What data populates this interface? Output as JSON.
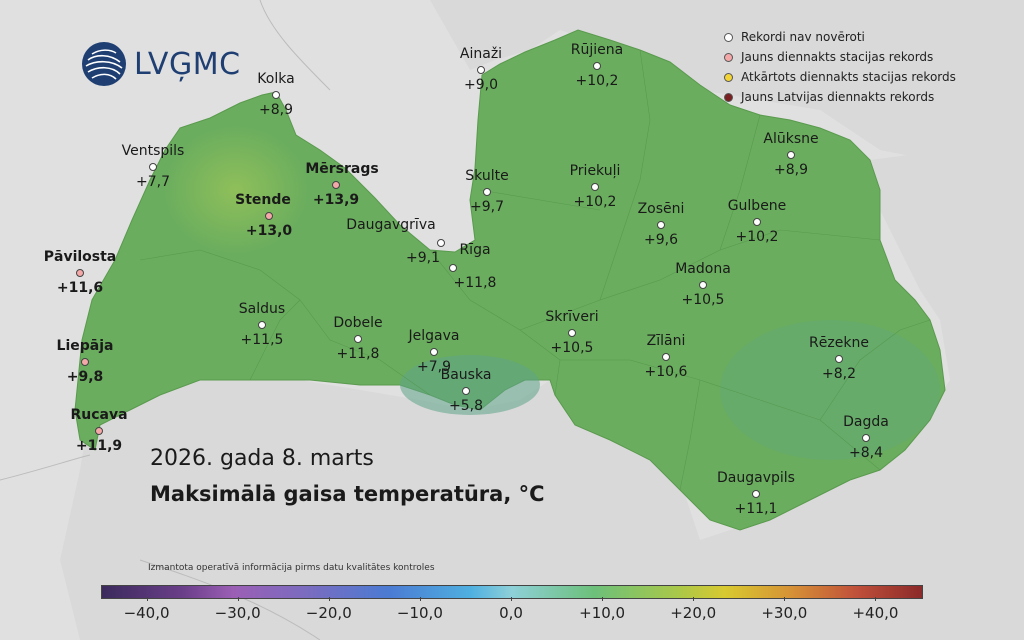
{
  "logo": {
    "text": "LVĢMC"
  },
  "legend": {
    "items": [
      {
        "label": "Rekordi nav novēroti",
        "color": "#ffffff"
      },
      {
        "label": "Jauns diennakts stacijas rekords",
        "color": "#f4a8a8"
      },
      {
        "label": "Atkārtots diennakts stacijas rekords",
        "color": "#f2d437"
      },
      {
        "label": "Jauns Latvijas diennakts rekords",
        "color": "#7a2020"
      }
    ]
  },
  "title": {
    "date": "2026. gada 8. marts",
    "main": "Maksimālā gaisa temperatūra, °C"
  },
  "note": "Izmantota operatīvā informācija pirms datu kvalitātes kontroles",
  "scale": {
    "min": -45,
    "max": 45,
    "ticks": [
      "−40,0",
      "−30,0",
      "−20,0",
      "−10,0",
      "0,0",
      "+10,0",
      "+20,0",
      "+30,0",
      "+40,0"
    ],
    "tick_values": [
      -40,
      -30,
      -20,
      -10,
      0,
      10,
      20,
      30,
      40
    ]
  },
  "stations": [
    {
      "name": "Ainaži",
      "value": "+9,0",
      "record": "none",
      "bold": false
    },
    {
      "name": "Rūjiena",
      "value": "+10,2",
      "record": "none",
      "bold": false
    },
    {
      "name": "Kolka",
      "value": "+8,9",
      "record": "none",
      "bold": false
    },
    {
      "name": "Ventspils",
      "value": "+7,7",
      "record": "none",
      "bold": false
    },
    {
      "name": "Mērsrags",
      "value": "+13,9",
      "record": "new",
      "bold": true
    },
    {
      "name": "Stende",
      "value": "+13,0",
      "record": "new",
      "bold": true
    },
    {
      "name": "Skulte",
      "value": "+9,7",
      "record": "none",
      "bold": false
    },
    {
      "name": "Priekuļi",
      "value": "+10,2",
      "record": "none",
      "bold": false
    },
    {
      "name": "Alūksne",
      "value": "+8,9",
      "record": "none",
      "bold": false
    },
    {
      "name": "Zosēni",
      "value": "+9,6",
      "record": "none",
      "bold": false
    },
    {
      "name": "Gulbene",
      "value": "+10,2",
      "record": "none",
      "bold": false
    },
    {
      "name": "Daugavgrīva",
      "value": "+9,1",
      "record": "none",
      "bold": false
    },
    {
      "name": "Rīga",
      "value": "+11,8",
      "record": "none",
      "bold": false
    },
    {
      "name": "Pāvilosta",
      "value": "+11,6",
      "record": "new",
      "bold": true
    },
    {
      "name": "Madona",
      "value": "+10,5",
      "record": "none",
      "bold": false
    },
    {
      "name": "Saldus",
      "value": "+11,5",
      "record": "none",
      "bold": false
    },
    {
      "name": "Dobele",
      "value": "+11,8",
      "record": "none",
      "bold": false
    },
    {
      "name": "Jelgava",
      "value": "+7,9",
      "record": "none",
      "bold": false
    },
    {
      "name": "Skrīveri",
      "value": "+10,5",
      "record": "none",
      "bold": false
    },
    {
      "name": "Zīlāni",
      "value": "+10,6",
      "record": "none",
      "bold": false
    },
    {
      "name": "Rēzekne",
      "value": "+8,2",
      "record": "none",
      "bold": false
    },
    {
      "name": "Liepāja",
      "value": "+9,8",
      "record": "new",
      "bold": true
    },
    {
      "name": "Bauska",
      "value": "+5,8",
      "record": "none",
      "bold": false
    },
    {
      "name": "Dagda",
      "value": "+8,4",
      "record": "none",
      "bold": false
    },
    {
      "name": "Rucava",
      "value": "+11,9",
      "record": "new",
      "bold": true
    },
    {
      "name": "Daugavpils",
      "value": "+11,1",
      "record": "none",
      "bold": false
    }
  ]
}
